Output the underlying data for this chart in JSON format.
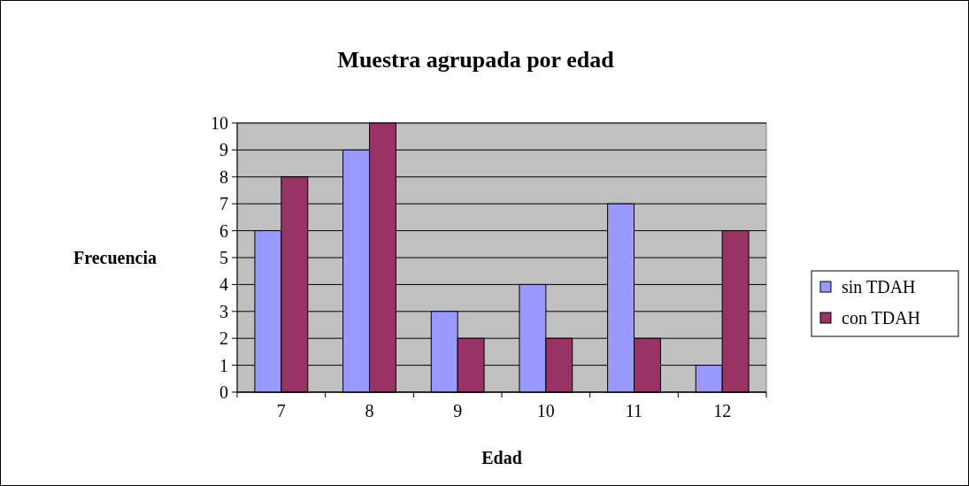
{
  "chart_data": {
    "type": "bar",
    "title": "Muestra agrupada por edad",
    "xlabel": "Edad",
    "ylabel": "Frecuencia",
    "categories": [
      "7",
      "8",
      "9",
      "10",
      "11",
      "12"
    ],
    "series": [
      {
        "name": "sin TDAH",
        "color": "#9999ff",
        "values": [
          6,
          9,
          3,
          4,
          7,
          1
        ]
      },
      {
        "name": "con TDAH",
        "color": "#993366",
        "values": [
          8,
          10,
          2,
          2,
          2,
          6
        ]
      }
    ],
    "ylim": [
      0,
      10
    ],
    "yticks": [
      0,
      1,
      2,
      3,
      4,
      5,
      6,
      7,
      8,
      9,
      10
    ],
    "grid": "y",
    "legend": "right"
  }
}
